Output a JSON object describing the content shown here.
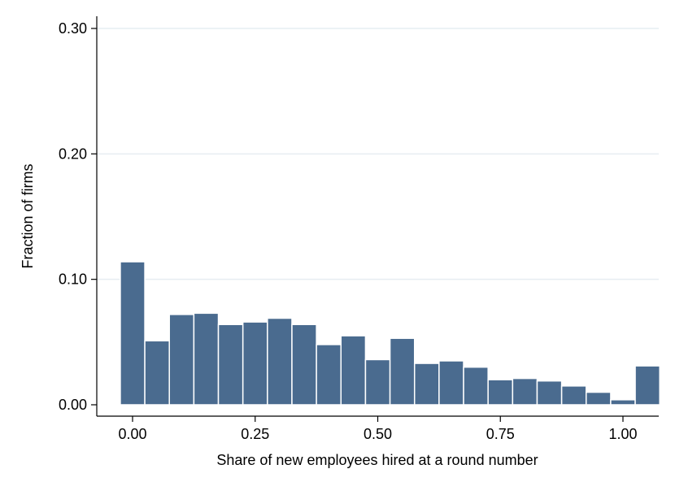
{
  "chart_data": {
    "type": "bar",
    "xlabel": "Share of new employees hired at a round number",
    "ylabel": "Fraction of firms",
    "xlim": [
      -0.05,
      1.05
    ],
    "ylim": [
      0,
      0.3
    ],
    "bin_width": 0.05,
    "bins": [
      {
        "x_start": -0.025,
        "x_end": 0.025,
        "value": 0.114
      },
      {
        "x_start": 0.025,
        "x_end": 0.075,
        "value": 0.051
      },
      {
        "x_start": 0.075,
        "x_end": 0.125,
        "value": 0.072
      },
      {
        "x_start": 0.125,
        "x_end": 0.175,
        "value": 0.073
      },
      {
        "x_start": 0.175,
        "x_end": 0.225,
        "value": 0.064
      },
      {
        "x_start": 0.225,
        "x_end": 0.275,
        "value": 0.066
      },
      {
        "x_start": 0.275,
        "x_end": 0.325,
        "value": 0.069
      },
      {
        "x_start": 0.325,
        "x_end": 0.375,
        "value": 0.064
      },
      {
        "x_start": 0.375,
        "x_end": 0.425,
        "value": 0.048
      },
      {
        "x_start": 0.425,
        "x_end": 0.475,
        "value": 0.055
      },
      {
        "x_start": 0.475,
        "x_end": 0.525,
        "value": 0.036
      },
      {
        "x_start": 0.525,
        "x_end": 0.575,
        "value": 0.053
      },
      {
        "x_start": 0.575,
        "x_end": 0.625,
        "value": 0.033
      },
      {
        "x_start": 0.625,
        "x_end": 0.675,
        "value": 0.035
      },
      {
        "x_start": 0.675,
        "x_end": 0.725,
        "value": 0.03
      },
      {
        "x_start": 0.725,
        "x_end": 0.775,
        "value": 0.02
      },
      {
        "x_start": 0.775,
        "x_end": 0.825,
        "value": 0.021
      },
      {
        "x_start": 0.825,
        "x_end": 0.875,
        "value": 0.019
      },
      {
        "x_start": 0.875,
        "x_end": 0.925,
        "value": 0.015
      },
      {
        "x_start": 0.925,
        "x_end": 0.975,
        "value": 0.01
      },
      {
        "x_start": 0.975,
        "x_end": 1.025,
        "value": 0.004
      },
      {
        "x_start": 1.025,
        "x_end": 1.075,
        "value": 0.031
      }
    ],
    "x_ticks": [
      {
        "value": 0.0,
        "label": "0.00"
      },
      {
        "value": 0.25,
        "label": "0.25"
      },
      {
        "value": 0.5,
        "label": "0.50"
      },
      {
        "value": 0.75,
        "label": "0.75"
      },
      {
        "value": 1.0,
        "label": "1.00"
      }
    ],
    "y_ticks": [
      {
        "value": 0.0,
        "label": "0.00"
      },
      {
        "value": 0.1,
        "label": "0.10"
      },
      {
        "value": 0.2,
        "label": "0.20"
      },
      {
        "value": 0.3,
        "label": "0.30"
      }
    ],
    "grid": "horizontal",
    "colors": {
      "bar_fill": "#4a6b8f",
      "bar_edge": "#ffffff",
      "grid": "#e6edf2",
      "axis": "#000000"
    }
  }
}
